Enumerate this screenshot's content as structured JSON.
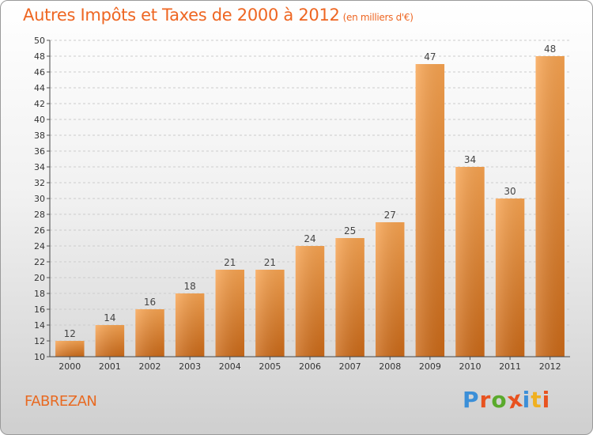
{
  "header": {
    "title": "Autres Impôts et Taxes de 2000 à 2012",
    "subtitle": "(en milliers d'€)"
  },
  "footer": {
    "place": "FABREZAN",
    "logo_text": "Proxiti"
  },
  "colors": {
    "title": "#ee6622",
    "bar_top": "#f8a451",
    "bar_bottom": "#cc6a18",
    "grid": "#cccccc",
    "logo": [
      "#3b8fd8",
      "#e8521f",
      "#5aaa2c",
      "#e8521f",
      "#3b8fd8",
      "#f0b020",
      "#e8521f"
    ]
  },
  "chart_data": {
    "type": "bar",
    "title": "Autres Impôts et Taxes de 2000 à 2012",
    "subtitle": "(en milliers d'€)",
    "categories": [
      "2000",
      "2001",
      "2002",
      "2003",
      "2004",
      "2005",
      "2006",
      "2007",
      "2008",
      "2009",
      "2010",
      "2011",
      "2012"
    ],
    "values": [
      12,
      14,
      16,
      18,
      21,
      21,
      24,
      25,
      27,
      47,
      34,
      30,
      48
    ],
    "ylim": [
      10,
      50
    ],
    "ytick_step": 2,
    "grid": true,
    "data_labels": true
  }
}
